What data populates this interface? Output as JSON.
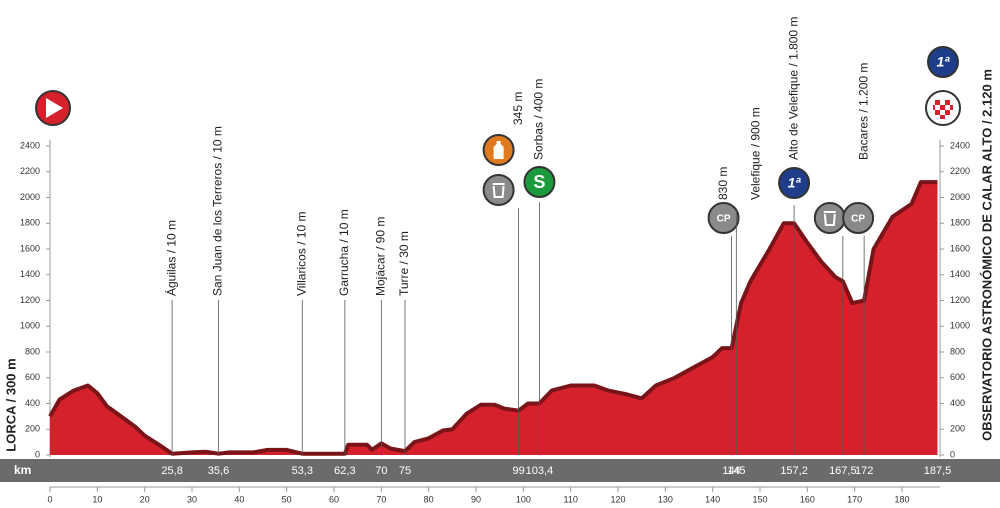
{
  "chart_data": {
    "type": "area",
    "start_label": "LORCA / 300 m",
    "finish_label": "OBSERVATORIO ASTRONÓMICO DE CALAR ALTO / 2.120 m",
    "axis_label": "km",
    "sprint_badge": "S",
    "climb_badge": "1ª",
    "feed_badge": "CP",
    "x": [
      0,
      2,
      5,
      8,
      10,
      12,
      15,
      18,
      20,
      23,
      25.8,
      30,
      33,
      35.6,
      38,
      43,
      46,
      50,
      53.3,
      62.3,
      63,
      67,
      68,
      70,
      72,
      75,
      77,
      80,
      83,
      85,
      88,
      91,
      94,
      96,
      99,
      101,
      103.4,
      106,
      110,
      115,
      118,
      122,
      125,
      128,
      132,
      136,
      140,
      142,
      144,
      146,
      148,
      152,
      155,
      157.2,
      160,
      163,
      166,
      167.5,
      169.5,
      172,
      174,
      178,
      182,
      184,
      187.5
    ],
    "values": [
      300,
      430,
      500,
      540,
      480,
      380,
      300,
      220,
      150,
      80,
      10,
      20,
      25,
      10,
      20,
      20,
      40,
      40,
      10,
      10,
      80,
      80,
      40,
      90,
      50,
      30,
      100,
      130,
      190,
      200,
      320,
      390,
      390,
      360,
      345,
      400,
      400,
      500,
      540,
      540,
      500,
      470,
      440,
      540,
      600,
      680,
      760,
      830,
      830,
      1180,
      1350,
      1600,
      1800,
      1800,
      1650,
      1500,
      1380,
      1350,
      1180,
      1200,
      1600,
      1850,
      1950,
      2120,
      2120
    ],
    "color": "#d4212c",
    "xlim": [
      0,
      187.5
    ],
    "xticks": [
      0,
      10,
      20,
      30,
      40,
      50,
      60,
      70,
      80,
      90,
      100,
      110,
      120,
      130,
      140,
      150,
      160,
      170,
      180
    ],
    "ylim": [
      0,
      2400
    ],
    "yticks": [
      0,
      200,
      400,
      600,
      800,
      1000,
      1200,
      1400,
      1600,
      1800,
      2000,
      2200,
      2400
    ],
    "markers": [
      {
        "km": 25.8,
        "km_label": "25,8",
        "name": "Águilas / 10 m"
      },
      {
        "km": 35.6,
        "km_label": "35,6",
        "name": "San Juan de los Terreros / 10 m"
      },
      {
        "km": 53.3,
        "km_label": "53,3",
        "name": "Villaricos / 10 m"
      },
      {
        "km": 62.3,
        "km_label": "62,3",
        "name": "Garrucha / 10 m"
      },
      {
        "km": 70,
        "km_label": "70",
        "name": "Mojácar / 90 m"
      },
      {
        "km": 75,
        "km_label": "75",
        "name": "Turre / 30 m"
      },
      {
        "km": 99,
        "km_label": "99",
        "name": "345 m"
      },
      {
        "km": 103.4,
        "km_label": "103,4",
        "name": "Sorbas / 400 m"
      },
      {
        "km": 144,
        "km_label": "144",
        "name": "830 m"
      },
      {
        "km": 145,
        "km_label": "145",
        "name": "Velefique / 900 m"
      },
      {
        "km": 157.2,
        "km_label": "157,2",
        "name": "Alto de Velefique / 1.800 m"
      },
      {
        "km": 167.5,
        "km_label": "167,5",
        "name": null
      },
      {
        "km": 172,
        "km_label": "172",
        "name": "Bacares / 1.200 m"
      },
      {
        "km": 187.5,
        "km_label": "187,5",
        "name": null
      }
    ]
  }
}
